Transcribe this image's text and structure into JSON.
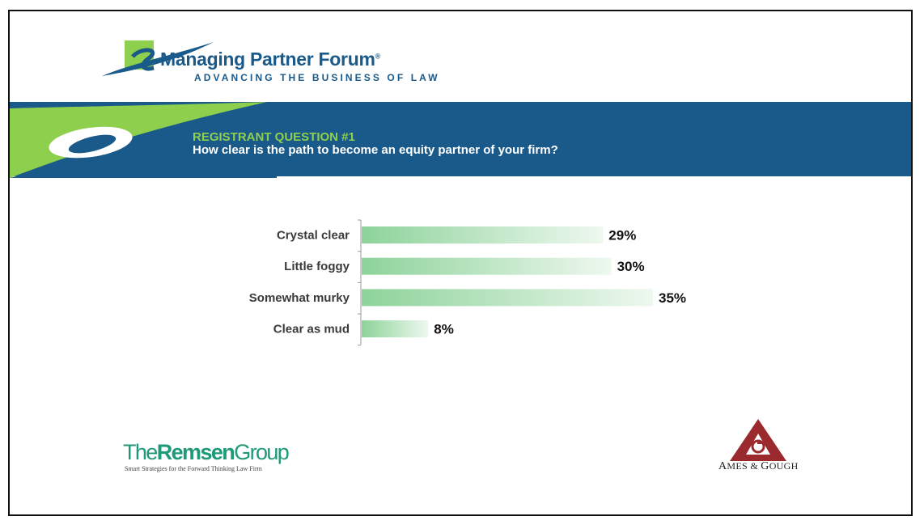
{
  "header": {
    "logo_title": "Managing Partner Forum",
    "logo_registered": "®",
    "logo_tagline": "ADVANCING THE BUSINESS OF LAW"
  },
  "banner": {
    "question_label": "REGISTRANT QUESTION #1",
    "question_text": "How clear is the path to become an equity partner of your firm?"
  },
  "colors": {
    "banner_blue": "#1a5a8a",
    "accent_green": "#8ecf4e",
    "bar_green_start": "#8dd39a",
    "bar_green_end": "#eef8ef"
  },
  "chart_data": {
    "type": "bar",
    "orientation": "horizontal",
    "categories": [
      "Crystal clear",
      "Little foggy",
      "Somewhat murky",
      "Clear as mud"
    ],
    "values": [
      29,
      30,
      35,
      8
    ],
    "value_labels": [
      "29%",
      "30%",
      "35%",
      "8%"
    ],
    "unit": "%",
    "title": "",
    "xlabel": "",
    "ylabel": "",
    "grid": false,
    "legend": "none"
  },
  "footer": {
    "remsen_prefix": "The",
    "remsen_bold": "Remsen",
    "remsen_suffix": "Group",
    "remsen_tagline": "Smart Strategies for the Forward Thinking Law Firm",
    "ames_first_initial": "A",
    "ames_first_rest": "MES",
    "ames_amp": "&",
    "ames_second_initial": "G",
    "ames_second_rest": "OUGH"
  }
}
